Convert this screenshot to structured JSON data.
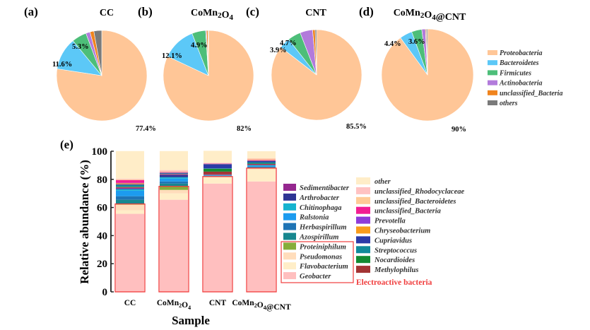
{
  "chart_data": [
    {
      "type": "pie",
      "panel_label": "(a)",
      "title": "CC",
      "legend": [
        "Proteobacteria",
        "Bacteroidetes",
        "Firmicutes",
        "Actinobacteria",
        "unclassified_Bacteria",
        "others"
      ],
      "colors": [
        "#FFC697",
        "#5CC8F7",
        "#4DBE79",
        "#B27BDB",
        "#F0841E",
        "#7A7A7A"
      ],
      "values": [
        77.4,
        11.6,
        5.3,
        1.5,
        1.4,
        2.8
      ],
      "labels": [
        "77.4%",
        "11.6%",
        "5.3%",
        "",
        "",
        ""
      ]
    },
    {
      "type": "pie",
      "panel_label": "(b)",
      "title": "CoMn2O4",
      "legend": [
        "Proteobacteria",
        "Bacteroidetes",
        "Firmicutes",
        "Actinobacteria",
        "unclassified_Bacteria",
        "others"
      ],
      "colors": [
        "#FFC697",
        "#5CC8F7",
        "#4DBE79",
        "#B27BDB",
        "#F0841E",
        "#7A7A7A"
      ],
      "values": [
        82,
        12.1,
        4.9,
        0.3,
        0.5,
        0.2
      ],
      "labels": [
        "82%",
        "12.1%",
        "4.9%",
        "",
        "",
        ""
      ]
    },
    {
      "type": "pie",
      "panel_label": "(c)",
      "title": "CNT",
      "legend": [
        "Proteobacteria",
        "Bacteroidetes",
        "Firmicutes",
        "Actinobacteria",
        "unclassified_Bacteria",
        "others"
      ],
      "colors": [
        "#FFC697",
        "#5CC8F7",
        "#4DBE79",
        "#B27BDB",
        "#F0841E",
        "#7A7A7A"
      ],
      "values": [
        85.5,
        3.9,
        4.7,
        4.5,
        0.9,
        0.5
      ],
      "labels": [
        "85.5%",
        "3.9%",
        "4.7%",
        "",
        "",
        ""
      ]
    },
    {
      "type": "pie",
      "panel_label": "(d)",
      "title": "CoMn2O4@CNT",
      "legend": [
        "Proteobacteria",
        "Bacteroidetes",
        "Firmicutes",
        "Actinobacteria",
        "unclassified_Bacteria",
        "others"
      ],
      "colors": [
        "#FFC697",
        "#5CC8F7",
        "#4DBE79",
        "#B27BDB",
        "#F0841E",
        "#7A7A7A"
      ],
      "values": [
        90,
        4.4,
        3.6,
        1.3,
        0.3,
        0.4
      ],
      "labels": [
        "90%",
        "4.4%",
        "3.6%",
        "",
        "",
        ""
      ]
    },
    {
      "type": "bar",
      "stacked": true,
      "panel_label": "(e)",
      "xlabel": "Sample",
      "ylabel": "Relative abundance (%)",
      "ylim": [
        0,
        100
      ],
      "yticks": [
        0,
        20,
        40,
        60,
        80,
        100
      ],
      "categories": [
        "CC",
        "CoMn2O4",
        "CNT",
        "CoMn2O4@CNT"
      ],
      "electroactive_label": "Electroactive bacteria",
      "electroactive_totals": [
        62.5,
        75,
        82,
        88
      ],
      "series": [
        {
          "name": "Geobacter",
          "color": "#FFBFBF",
          "values": [
            55.5,
            65.5,
            77,
            78.5
          ]
        },
        {
          "name": "Flavobacterium",
          "color": "#FFEEC8",
          "values": [
            2.5,
            4.5,
            4.5,
            8.5
          ]
        },
        {
          "name": "Pseudomonas",
          "color": "#FFDDBB",
          "values": [
            4,
            2.5,
            0.5,
            1
          ]
        },
        {
          "name": "Proteiniphilum",
          "color": "#86AD3A",
          "values": [
            0.5,
            2.5,
            0,
            0
          ]
        },
        {
          "name": "Azospirillum",
          "color": "#17878F",
          "values": [
            3,
            2,
            0.3,
            0.5
          ]
        },
        {
          "name": "Herbaspirillum",
          "color": "#1F74B5",
          "values": [
            2.5,
            1.5,
            0.3,
            0.5
          ]
        },
        {
          "name": "Ralstonia",
          "color": "#1C9BEF",
          "values": [
            4,
            2,
            0.2,
            0.5
          ]
        },
        {
          "name": "Chitinophaga",
          "color": "#16B3CF",
          "values": [
            1,
            1,
            0.2,
            0.5
          ]
        },
        {
          "name": "Arthrobacter",
          "color": "#2E3594",
          "values": [
            0.5,
            1.5,
            0.3,
            0.3
          ]
        },
        {
          "name": "Sedimentibacter",
          "color": "#95278F",
          "values": [
            0.5,
            0.5,
            0.2,
            0.2
          ]
        },
        {
          "name": "Methylophilus",
          "color": "#A33434",
          "values": [
            0.5,
            0.2,
            2,
            0.5
          ]
        },
        {
          "name": "Nocardioides",
          "color": "#138A32",
          "values": [
            0.3,
            0.1,
            2,
            0.2
          ]
        },
        {
          "name": "Streptococcus",
          "color": "#118A9A",
          "values": [
            1.2,
            0.3,
            0.3,
            1
          ]
        },
        {
          "name": "Cupriavidus",
          "color": "#2B3AA8",
          "values": [
            0.5,
            0.5,
            3,
            0.8
          ]
        },
        {
          "name": "Chryseobacterium",
          "color": "#F89C1C",
          "values": [
            0.7,
            0.2,
            0.1,
            0.2
          ]
        },
        {
          "name": "Prevotella",
          "color": "#8E3CD9",
          "values": [
            0.3,
            0.2,
            0.2,
            0.3
          ]
        },
        {
          "name": "unclassified_Bacteria",
          "color": "#F21E93",
          "values": [
            2,
            0.3,
            0.2,
            0.3
          ]
        },
        {
          "name": "unclassified_Bacteroidetes",
          "color": "#FFCB97",
          "values": [
            0.5,
            0.5,
            0.2,
            1
          ]
        },
        {
          "name": "unclassified_Rhodocyclaceae",
          "color": "#FFC2C2",
          "values": [
            0.5,
            0.8,
            0.3,
            0.3
          ]
        },
        {
          "name": "other",
          "color": "#FFEDC8",
          "values": [
            19.6,
            13.5,
            8.5,
            4.9
          ]
        }
      ],
      "legend_left": [
        "Sedimentibacter",
        "Arthrobacter",
        "Chitinophaga",
        "Ralstonia",
        "Herbaspirillum",
        "Azospirillum",
        "Proteiniphilum",
        "Pseudomonas",
        "Flavobacterium",
        "Geobacter"
      ],
      "legend_right": [
        "other",
        "unclassified_Rhodocyclaceae",
        "unclassified_Bacteroidetes",
        "unclassified_Bacteria",
        "Prevotella",
        "Chryseobacterium",
        "Cupriavidus",
        "Streptococcus",
        "Nocardioides",
        "Methylophilus"
      ],
      "accent_color": "#F03C3C"
    }
  ]
}
